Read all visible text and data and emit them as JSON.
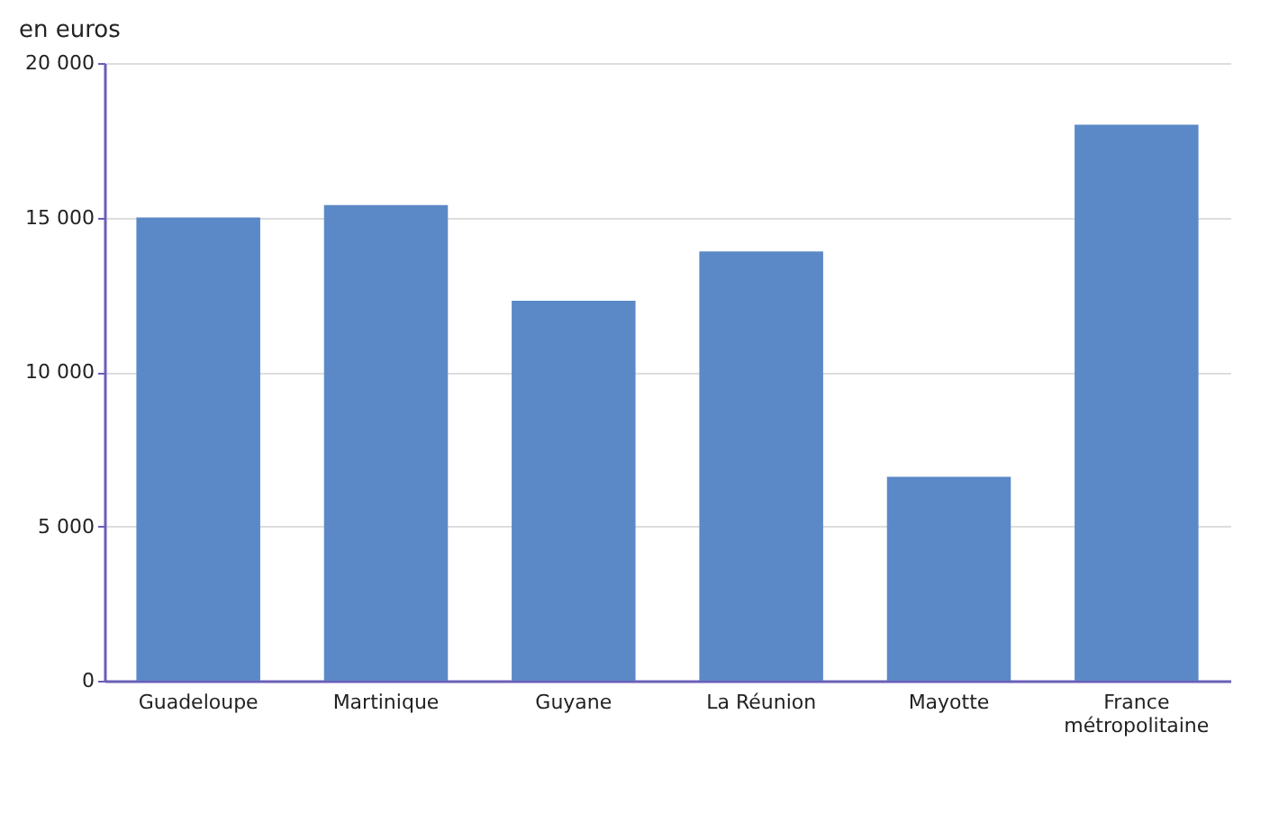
{
  "chart_data": {
    "type": "bar",
    "ylabel": "en euros",
    "categories": [
      "Guadeloupe",
      "Martinique",
      "Guyane",
      "La Réunion",
      "Mayotte",
      "France métropolitaine"
    ],
    "values": [
      15000,
      15400,
      12300,
      13900,
      6600,
      18000
    ],
    "color": "#5b89c7",
    "ylim": [
      0,
      20000
    ],
    "yticks": [
      0,
      {
        "value": 5000,
        "label": "5 000"
      },
      {
        "value": 10000,
        "label": "10 000"
      },
      {
        "value": 15000,
        "label": "15 000"
      },
      {
        "value": 20000,
        "label": "20 000"
      }
    ],
    "grid": "y"
  }
}
